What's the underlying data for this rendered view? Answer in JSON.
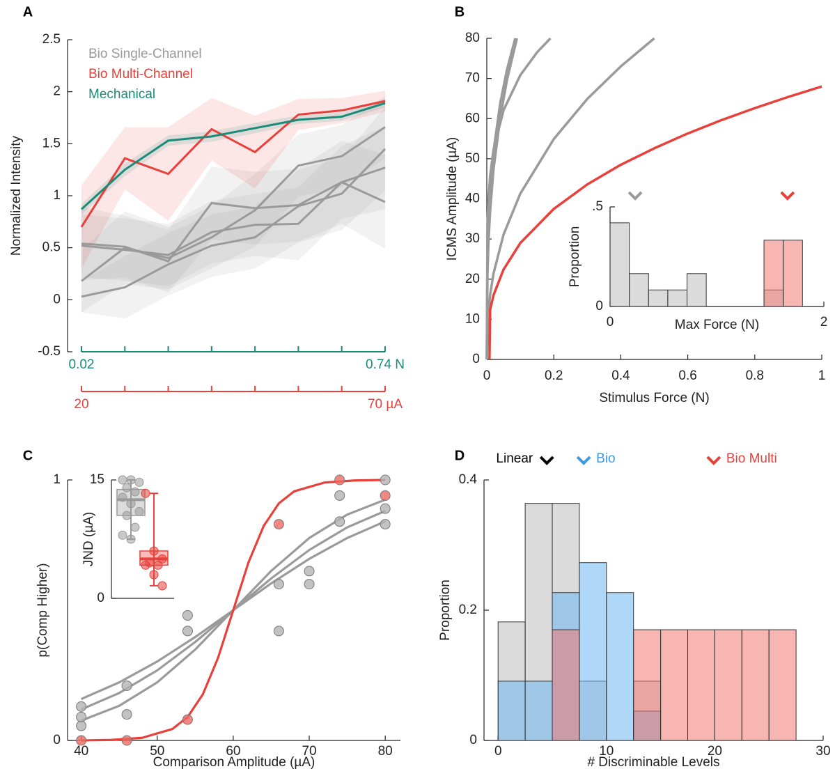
{
  "chart_data": [
    {
      "panel": "A",
      "type": "line",
      "ylabel": "Normalized Intensity",
      "ylim": [
        -0.5,
        2.5
      ],
      "yticks": [
        -0.5,
        0,
        0.5,
        1,
        1.5,
        2,
        2.5
      ],
      "x_axes": [
        {
          "color": "#1b8a79",
          "ticks": [
            0.02,
            null,
            null,
            null,
            null,
            null,
            null,
            {
              "value": 0.74,
              "label": "0.74 N"
            }
          ]
        },
        {
          "color": "#e8403a",
          "ticks": [
            20,
            null,
            null,
            null,
            null,
            null,
            null,
            {
              "value": 70,
              "label": "70 µA"
            }
          ]
        }
      ],
      "series": [
        {
          "name": "Bio Single-Channel",
          "color": "#9a9a9a",
          "values": [
            0.54,
            0.51,
            0.37,
            0.93,
            0.88,
            0.91,
            1.13,
            0.94
          ],
          "error": [
            0.35,
            0.3,
            0.3,
            0.35,
            0.35,
            0.35,
            0.4,
            0.45
          ]
        },
        {
          "color": "#9a9a9a",
          "values": [
            0.52,
            0.48,
            0.43,
            0.65,
            0.72,
            0.73,
            1.13,
            1.27
          ],
          "error": [
            0.3,
            0.3,
            0.3,
            0.3,
            0.3,
            0.35,
            0.35,
            0.4
          ]
        },
        {
          "color": "#9a9a9a",
          "values": [
            0.18,
            0.5,
            0.4,
            0.6,
            0.86,
            1.29,
            1.38,
            1.66
          ],
          "error": [
            0.3,
            0.35,
            0.3,
            0.3,
            0.35,
            0.3,
            0.3,
            0.3
          ]
        },
        {
          "color": "#9a9a9a",
          "values": [
            0.03,
            0.12,
            0.34,
            0.52,
            0.6,
            0.9,
            1.02,
            1.45
          ],
          "error": [
            0.15,
            0.3,
            0.3,
            0.3,
            0.3,
            0.35,
            0.35,
            0.4
          ]
        },
        {
          "name": "Bio Multi-Channel",
          "color": "#e8403a",
          "values": [
            0.7,
            1.36,
            1.21,
            1.64,
            1.42,
            1.78,
            1.82,
            1.91
          ],
          "error": [
            0.4,
            0.3,
            0.45,
            0.3,
            0.35,
            0.15,
            0.12,
            0.1
          ]
        },
        {
          "name": "Mechanical",
          "color": "#1b8a79",
          "values": [
            0.87,
            1.25,
            1.53,
            1.57,
            1.65,
            1.73,
            1.76,
            1.89
          ],
          "error": [
            0.05,
            0.06,
            0.05,
            0.05,
            0.05,
            0.04,
            0.04,
            0.04
          ]
        }
      ]
    },
    {
      "panel": "B",
      "type": "line",
      "xlabel": "Stimulus Force (N)",
      "ylabel": "ICMS Amplitude (µA)",
      "xlim": [
        0,
        1
      ],
      "ylim": [
        0,
        80
      ],
      "xticks": [
        0,
        0.2,
        0.4,
        0.6,
        0.8,
        1
      ],
      "yticks": [
        0,
        10,
        20,
        30,
        40,
        50,
        60,
        70,
        80
      ],
      "series": [
        {
          "color": "#9a9a9a",
          "x": [
            0,
            0.002,
            0.005,
            0.01,
            0.02,
            0.04,
            0.06,
            0.085
          ],
          "values": [
            0,
            26,
            34.2,
            42.1,
            51.8,
            63.8,
            72.1,
            80
          ]
        },
        {
          "color": "#9a9a9a",
          "x": [
            0,
            0.002,
            0.005,
            0.01,
            0.02,
            0.04,
            0.06,
            0.09
          ],
          "values": [
            0,
            21.1,
            29.1,
            37.1,
            47.3,
            60.2,
            69.5,
            80
          ]
        },
        {
          "color": "#9a9a9a",
          "x": [
            0,
            0.002,
            0.005,
            0.01,
            0.02,
            0.05,
            0.1,
            0.15,
            0.19
          ],
          "values": [
            0,
            33.7,
            40.1,
            45.7,
            52.2,
            62.1,
            70.8,
            76.5,
            80
          ]
        },
        {
          "color": "#9a9a9a",
          "x": [
            0,
            0.005,
            0.01,
            0.02,
            0.05,
            0.1,
            0.2,
            0.3,
            0.4,
            0.5
          ],
          "values": [
            0,
            12.1,
            16.1,
            21.4,
            31.1,
            41.3,
            54.9,
            64.9,
            73,
            80
          ]
        },
        {
          "color": "#e8403a",
          "x": [
            0.008,
            0.01,
            0.02,
            0.05,
            0.1,
            0.2,
            0.3,
            0.4,
            0.5,
            0.6,
            0.7,
            0.8,
            0.9,
            1
          ],
          "values": [
            0,
            12.4,
            16,
            22.4,
            29,
            37.5,
            43.6,
            48.5,
            52.6,
            56.3,
            59.6,
            62.6,
            65.4,
            68
          ]
        }
      ]
    },
    {
      "type": "histogram",
      "xlabel": "Max Force (N)",
      "ylabel": "Proportion",
      "xlim": [
        0,
        2
      ],
      "ylim": [
        0,
        0.5
      ],
      "xticks": [
        0,
        2
      ],
      "yticks": [
        0,
        {
          "value": 0.5,
          "label": ".5"
        }
      ],
      "series": [
        {
          "color": "#bdbdbd",
          "marker_color": "#9a9a9a",
          "marker": 0.235,
          "bins": [
            0,
            0.18,
            0.36,
            0.54,
            0.72,
            0.9,
            1.08,
            1.26,
            1.44,
            1.62
          ],
          "values": [
            0.42,
            0.165,
            0.083,
            0.083,
            0.165,
            0,
            0,
            0,
            0.083
          ]
        },
        {
          "color": "#f07a72",
          "marker_color": "#e8403a",
          "marker": 1.66,
          "bins": [
            1.44,
            1.62,
            1.8
          ],
          "values": [
            0.333,
            0.333
          ]
        }
      ]
    },
    {
      "panel": "C",
      "type": "scatter",
      "xlabel": "Comparison Amplitude (µA)",
      "ylabel": "p(Comp Higher)",
      "xlim": [
        38.2,
        82
      ],
      "ylim": [
        0,
        1
      ],
      "xticks": [
        40,
        50,
        60,
        70,
        80
      ],
      "yticks": [
        0,
        1
      ],
      "series": [
        {
          "color": "#b3b3b3",
          "x": [
            40,
            40,
            40,
            46,
            46,
            54,
            54,
            66,
            66,
            70,
            70,
            74,
            74,
            80,
            80,
            80
          ],
          "values": [
            0.056,
            0.09,
            0.13,
            0.1,
            0.21,
            0.42,
            0.48,
            0.42,
            0.6,
            0.6,
            0.65,
            0.84,
            0.94,
            0.83,
            0.89,
            1
          ]
        },
        {
          "color": "#ee6b63",
          "x": [
            40,
            46,
            54,
            66,
            74,
            80
          ],
          "values": [
            0,
            0,
            0.08,
            0.83,
            1,
            0.94
          ]
        }
      ],
      "curves": [
        {
          "color": "#9a9a9a",
          "x": [
            40,
            45,
            50,
            55,
            60,
            65,
            70,
            75,
            80
          ],
          "values": [
            0.076,
            0.133,
            0.223,
            0.349,
            0.5,
            0.651,
            0.777,
            0.867,
            0.924
          ]
        },
        {
          "color": "#9a9a9a",
          "x": [
            40,
            45,
            50,
            55,
            60,
            65,
            70,
            75,
            80
          ],
          "values": [
            0.119,
            0.182,
            0.269,
            0.378,
            0.5,
            0.622,
            0.731,
            0.818,
            0.881
          ]
        },
        {
          "color": "#9a9a9a",
          "x": [
            40,
            45,
            50,
            55,
            60,
            65,
            70,
            75,
            80
          ],
          "values": [
            0.159,
            0.223,
            0.303,
            0.397,
            0.5,
            0.603,
            0.697,
            0.777,
            0.841
          ]
        },
        {
          "color": "#e8403a",
          "x": [
            40,
            44,
            48,
            52,
            54,
            56,
            58,
            60,
            62,
            64,
            66,
            68,
            72,
            76,
            80
          ],
          "values": [
            0,
            0.002,
            0.01,
            0.044,
            0.09,
            0.177,
            0.317,
            0.5,
            0.683,
            0.823,
            0.91,
            0.956,
            0.99,
            0.998,
            1
          ]
        }
      ]
    },
    {
      "type": "box",
      "ylabel": "JND (µA)",
      "ylim": [
        0,
        15
      ],
      "yticks": [
        0,
        15
      ],
      "boxes": [
        {
          "color": "#9a9a9a",
          "min": 7.5,
          "q1": 10.5,
          "median": 12.5,
          "q3": 13.8,
          "max": 15,
          "points": [
            15,
            15,
            14.7,
            14,
            13.5,
            12.8,
            12,
            11,
            10.5,
            9,
            8,
            7.5
          ]
        },
        {
          "color": "#e8403a",
          "min": 1.6,
          "q1": 4.2,
          "median": 5,
          "q3": 6,
          "max": 13.3,
          "points": [
            13.3,
            6,
            5,
            4.5,
            4.2,
            4.2,
            3,
            1.6
          ]
        }
      ]
    },
    {
      "panel": "D",
      "type": "histogram",
      "xlabel": "# Discriminable Levels",
      "ylabel": "Proportion",
      "xlim": [
        -1.3,
        30
      ],
      "ylim": [
        0,
        0.4
      ],
      "xticks": [
        0,
        10,
        20,
        30
      ],
      "yticks": [
        0,
        0.2,
        0.4
      ],
      "bins": [
        0,
        2.5,
        5,
        7.5,
        10,
        12.5,
        15,
        17.5,
        20,
        22.5,
        25,
        27.5
      ],
      "series": [
        {
          "name": "Linear",
          "color": "#bdbdbd",
          "marker_color": "#000000",
          "marker": 4.5,
          "values": [
            0.182,
            0.364,
            0.364,
            0.091,
            0,
            0.091,
            0,
            0,
            0,
            0,
            0
          ]
        },
        {
          "name": "Bio",
          "color": "#6db8f2",
          "marker_color": "#3a9be0",
          "marker": 7.9,
          "values": [
            0.091,
            0.091,
            0.227,
            0.273,
            0.227,
            0.045,
            0,
            0,
            0,
            0,
            0
          ]
        },
        {
          "name": "Bio Multi",
          "color": "#f07a72",
          "marker_color": "#e8403a",
          "marker": 19.9,
          "values": [
            0,
            0,
            0.17,
            0,
            0,
            0.17,
            0.17,
            0.17,
            0.17,
            0.17,
            0.17
          ]
        }
      ]
    }
  ]
}
